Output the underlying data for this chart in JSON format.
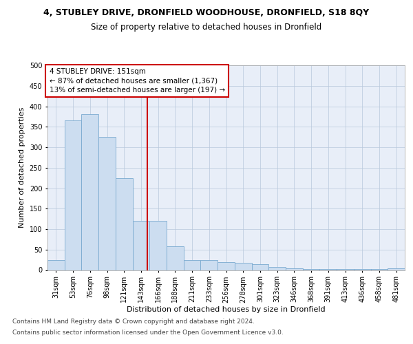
{
  "title": "4, STUBLEY DRIVE, DRONFIELD WOODHOUSE, DRONFIELD, S18 8QY",
  "subtitle": "Size of property relative to detached houses in Dronfield",
  "xlabel": "Distribution of detached houses by size in Dronfield",
  "ylabel": "Number of detached properties",
  "categories": [
    "31sqm",
    "53sqm",
    "76sqm",
    "98sqm",
    "121sqm",
    "143sqm",
    "166sqm",
    "188sqm",
    "211sqm",
    "233sqm",
    "256sqm",
    "278sqm",
    "301sqm",
    "323sqm",
    "346sqm",
    "368sqm",
    "391sqm",
    "413sqm",
    "436sqm",
    "458sqm",
    "481sqm"
  ],
  "values": [
    25,
    365,
    380,
    325,
    225,
    120,
    120,
    58,
    25,
    25,
    20,
    18,
    15,
    8,
    5,
    3,
    2,
    2,
    2,
    2,
    5
  ],
  "bar_color": "#ccddf0",
  "bar_edge_color": "#7aaad0",
  "grid_color": "#b8c8dc",
  "background_color": "#e8eef8",
  "annotation_text": "4 STUBLEY DRIVE: 151sqm\n← 87% of detached houses are smaller (1,367)\n13% of semi-detached houses are larger (197) →",
  "annotation_box_color": "#ffffff",
  "annotation_box_edge": "#cc0000",
  "vline_color": "#cc0000",
  "ylim": [
    0,
    500
  ],
  "yticks": [
    0,
    50,
    100,
    150,
    200,
    250,
    300,
    350,
    400,
    450,
    500
  ],
  "footer_line1": "Contains HM Land Registry data © Crown copyright and database right 2024.",
  "footer_line2": "Contains public sector information licensed under the Open Government Licence v3.0.",
  "title_fontsize": 9,
  "subtitle_fontsize": 8.5,
  "xlabel_fontsize": 8,
  "ylabel_fontsize": 8,
  "tick_fontsize": 7,
  "annotation_fontsize": 7.5,
  "footer_fontsize": 6.5
}
